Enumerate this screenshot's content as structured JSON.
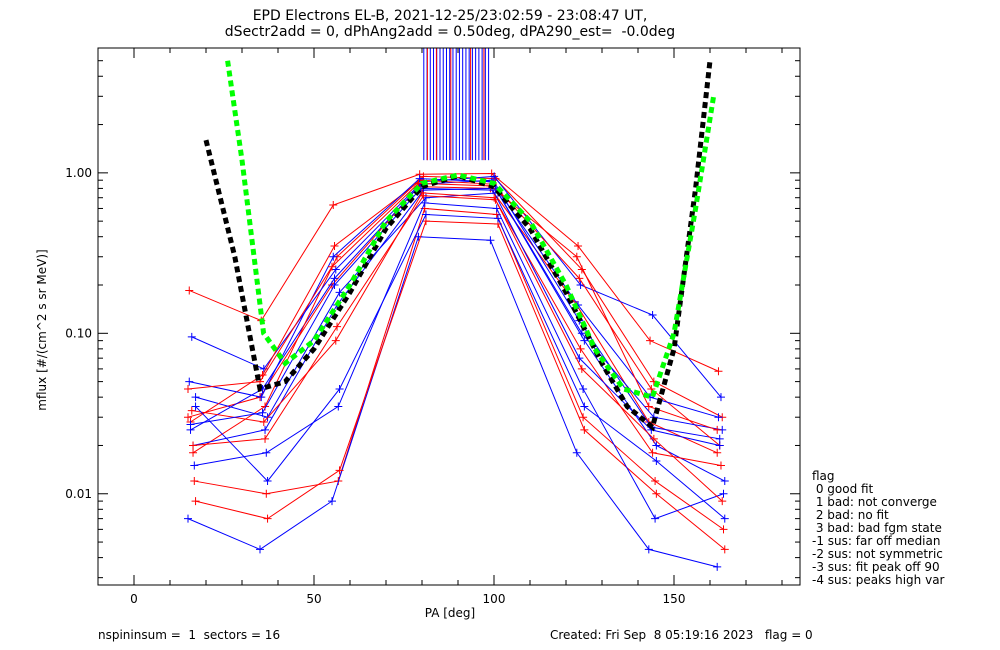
{
  "title_line1": "EPD Electrons EL-B, 2021-12-25/23:02:59 - 23:08:47 UT,",
  "title_line2": "dSectr2add = 0, dPhAng2add = 0.50deg, dPA290_est=  -0.0deg",
  "footer_left": "nspininsum =  1  sectors = 16",
  "footer_right": "Created: Fri Sep  8 05:19:16 2023   flag = 0",
  "legend": {
    "title": "flag",
    "items": [
      " 0 good fit",
      " 1 bad: not converge",
      " 2 bad: no fit",
      " 3 bad: bad fgm state",
      "-1 sus: far off median",
      "-2 sus: not symmetric",
      "-3 sus: fit peak off 90",
      "-4 sus: peaks high var"
    ]
  },
  "colors": {
    "red": "#ff0000",
    "blue": "#0000ff",
    "black": "#000000",
    "green": "#00ff00"
  },
  "chart_data": {
    "type": "line",
    "xlabel": "PA [deg]",
    "ylabel": "mflux [#/(cm^2 s sr MeV)]",
    "xlim": [
      -10,
      185
    ],
    "ylim": [
      0.0027,
      6.0
    ],
    "yscale": "log",
    "x_ticks": [
      0,
      50,
      100,
      150
    ],
    "x_tick_labels": [
      "0",
      "50",
      "100",
      "150"
    ],
    "y_ticks": [
      0.01,
      0.1,
      1.0
    ],
    "y_tick_labels": [
      "0.01",
      "0.10",
      "1.00"
    ],
    "spin_sectors_pa": [
      16,
      36,
      56,
      80,
      100,
      124,
      144,
      163
    ],
    "series": [
      {
        "color": "red",
        "values": [
          0.03,
          0.04,
          0.2,
          0.82,
          0.8,
          0.15,
          0.028,
          0.018
        ]
      },
      {
        "color": "blue",
        "values": [
          0.025,
          0.045,
          0.22,
          0.85,
          0.9,
          0.12,
          0.026,
          0.022
        ]
      },
      {
        "color": "red",
        "values": [
          0.018,
          0.035,
          0.3,
          0.95,
          0.92,
          0.25,
          0.05,
          0.03
        ]
      },
      {
        "color": "blue",
        "values": [
          0.04,
          0.03,
          0.18,
          0.7,
          0.75,
          0.09,
          0.02,
          0.012
        ]
      },
      {
        "color": "red",
        "values": [
          0.185,
          0.12,
          0.63,
          0.98,
          0.99,
          0.35,
          0.09,
          0.058
        ]
      },
      {
        "color": "blue",
        "values": [
          0.095,
          0.06,
          0.25,
          0.88,
          0.95,
          0.2,
          0.13,
          0.04
        ]
      },
      {
        "color": "red",
        "values": [
          0.012,
          0.01,
          0.012,
          0.6,
          0.55,
          0.03,
          0.012,
          0.006
        ]
      },
      {
        "color": "blue",
        "values": [
          0.007,
          0.0045,
          0.009,
          0.4,
          0.38,
          0.018,
          0.0045,
          0.0035
        ]
      },
      {
        "color": "red",
        "values": [
          0.028,
          0.055,
          0.35,
          0.9,
          0.85,
          0.22,
          0.045,
          0.02
        ]
      },
      {
        "color": "blue",
        "values": [
          0.02,
          0.025,
          0.15,
          0.78,
          0.8,
          0.1,
          0.03,
          0.025
        ]
      },
      {
        "color": "red",
        "values": [
          0.009,
          0.007,
          0.014,
          0.5,
          0.48,
          0.025,
          0.01,
          0.0045
        ]
      },
      {
        "color": "blue",
        "values": [
          0.05,
          0.04,
          0.3,
          0.92,
          0.88,
          0.15,
          0.04,
          0.03
        ]
      },
      {
        "color": "red",
        "values": [
          0.033,
          0.028,
          0.09,
          0.75,
          0.7,
          0.08,
          0.018,
          0.015
        ]
      },
      {
        "color": "blue",
        "values": [
          0.015,
          0.018,
          0.035,
          0.65,
          0.6,
          0.045,
          0.007,
          0.01
        ]
      },
      {
        "color": "red",
        "values": [
          0.045,
          0.05,
          0.26,
          0.86,
          0.83,
          0.3,
          0.035,
          0.025
        ]
      },
      {
        "color": "blue",
        "values": [
          0.027,
          0.032,
          0.2,
          0.8,
          0.78,
          0.07,
          0.025,
          0.02
        ]
      },
      {
        "color": "red",
        "values": [
          0.02,
          0.022,
          0.11,
          0.72,
          0.68,
          0.06,
          0.022,
          0.009
        ]
      },
      {
        "color": "blue",
        "values": [
          0.035,
          0.012,
          0.045,
          0.55,
          0.52,
          0.035,
          0.016,
          0.007
        ]
      }
    ],
    "fit_curves": [
      {
        "color": "black",
        "style": "dashed",
        "x": [
          20,
          28,
          35,
          42,
          50,
          60,
          70,
          80,
          90,
          100,
          110,
          120,
          130,
          137,
          144,
          150,
          156,
          160
        ],
        "y": [
          1.6,
          0.3,
          0.045,
          0.05,
          0.08,
          0.18,
          0.45,
          0.82,
          0.96,
          0.82,
          0.45,
          0.18,
          0.065,
          0.035,
          0.026,
          0.08,
          0.8,
          5.0
        ]
      },
      {
        "color": "green",
        "style": "dashed",
        "x": [
          26,
          30,
          36,
          42,
          50,
          60,
          70,
          80,
          90,
          100,
          110,
          120,
          128,
          136,
          144,
          150,
          156,
          161
        ],
        "y": [
          5.0,
          1.2,
          0.1,
          0.065,
          0.09,
          0.2,
          0.5,
          0.86,
          0.97,
          0.86,
          0.5,
          0.2,
          0.08,
          0.045,
          0.04,
          0.1,
          0.6,
          3.0
        ]
      }
    ]
  }
}
